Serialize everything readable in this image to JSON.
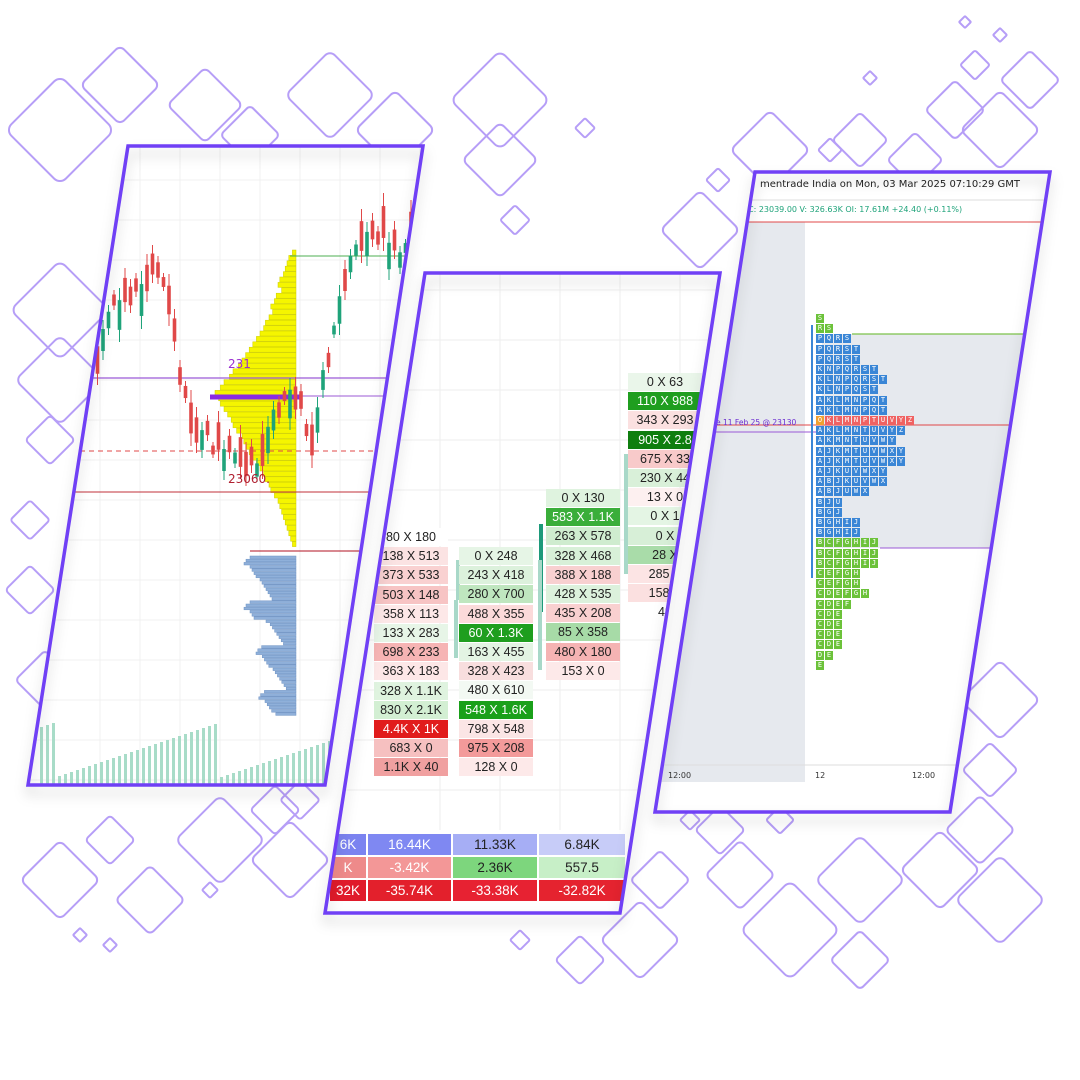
{
  "colors": {
    "frame": "#6f3ff5",
    "diamond": "#7b4ff0",
    "candle_up": "#1fa37a",
    "candle_down": "#e04848",
    "volume_profile_upper": "#f5f500",
    "volume_profile_lower": "#8fb0da",
    "tpo_blue": "#3a86d6",
    "tpo_green": "#6cc23a",
    "tpo_red": "#f06262",
    "poc_purple": "#8a2be2"
  },
  "left_chart": {
    "price_label_top": "231",
    "price_label_low": "23060."
  },
  "footprint": {
    "columns": [
      {
        "cells": [
          "80 X 180",
          "138 X 513",
          "373 X 533",
          "503 X 148",
          "358 X 113",
          "133 X 283",
          "698 X 233",
          "363 X 183",
          "328 X 1.1K",
          "830 X 2.1K",
          "4.4K X 1K",
          "683 X 0",
          "1.1K X 40"
        ]
      },
      {
        "cells": [
          "0 X 248",
          "243 X 418",
          "280 X 700",
          "488 X 355",
          "60 X 1.3K",
          "163 X 455",
          "328 X 423",
          "480 X 610",
          "548 X 1.6K",
          "798 X 548",
          "975 X 208",
          "128 X 0"
        ]
      },
      {
        "cells": [
          "0 X 130",
          "583 X 1.1K",
          "263 X 578",
          "328 X 468",
          "388 X 188",
          "428 X 535",
          "435 X 208",
          "85 X 358",
          "480 X 180",
          "153 X 0"
        ]
      },
      {
        "cells": [
          "0 X 63",
          "110 X 988",
          "343 X 293",
          "905 X 2.8",
          "675 X 33",
          "230 X 44",
          "13 X 0",
          "0 X 1",
          "0 X",
          "28 X",
          "285 X",
          "158 X",
          "48"
        ]
      }
    ],
    "summary_rows": [
      [
        "6K",
        "16.44K",
        "11.33K",
        "6.84K"
      ],
      [
        "K",
        "-3.42K",
        "2.36K",
        "557.5"
      ],
      [
        "32K",
        "-35.74K",
        "-33.38K",
        "-32.82K"
      ]
    ]
  },
  "tpo_chart": {
    "header": "mentrade India on Mon, 03 Mar 2025 07:10:29 GMT",
    "ohlc_line": "C: 23039.00  V: 326.63K  OI: 17.61M  +24.40  (+0.11%)",
    "poc_label": "e 11 Feb 25 @ 23130",
    "time_labels": [
      "12:00",
      "12",
      "12:00"
    ],
    "rows": [
      "S",
      "RS",
      "PQRS",
      "PQRST",
      "PQRST",
      "KNPQRST",
      "KLNPQRST",
      "KLNPQST",
      "AKLMNPQT",
      "AKLMNPQT",
      "OKLMNPTUVYZ",
      "AKLMNTUVYZ",
      "AKMNTUVWY",
      "AJKMTUVWXY",
      "AJKMTUVWXY",
      "AJKUVWXY",
      "ABJKUVWX",
      "ABJUWX",
      "BJU",
      "BGJ",
      "BGHIJ",
      "BGHIJ",
      "BCFGHIJ",
      "BCFGHIJ",
      "BCFGHIJ",
      "CEFGH",
      "CEFGH",
      "CDEFGH",
      "CDEF",
      "CDE",
      "CDE",
      "CDE",
      "CDE",
      "DE",
      "E"
    ]
  }
}
